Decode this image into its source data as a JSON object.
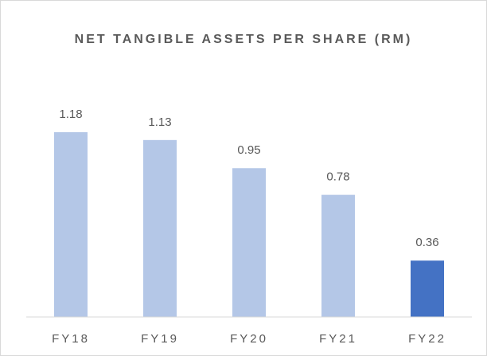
{
  "chart_data": {
    "type": "bar",
    "title": "NET TANGIBLE ASSETS PER SHARE (RM)",
    "categories": [
      "FY18",
      "FY19",
      "FY20",
      "FY21",
      "FY22"
    ],
    "values": [
      1.18,
      1.13,
      0.95,
      0.78,
      0.36
    ],
    "colors": [
      "#b4c7e7",
      "#b4c7e7",
      "#b4c7e7",
      "#b4c7e7",
      "#4472c4"
    ]
  }
}
